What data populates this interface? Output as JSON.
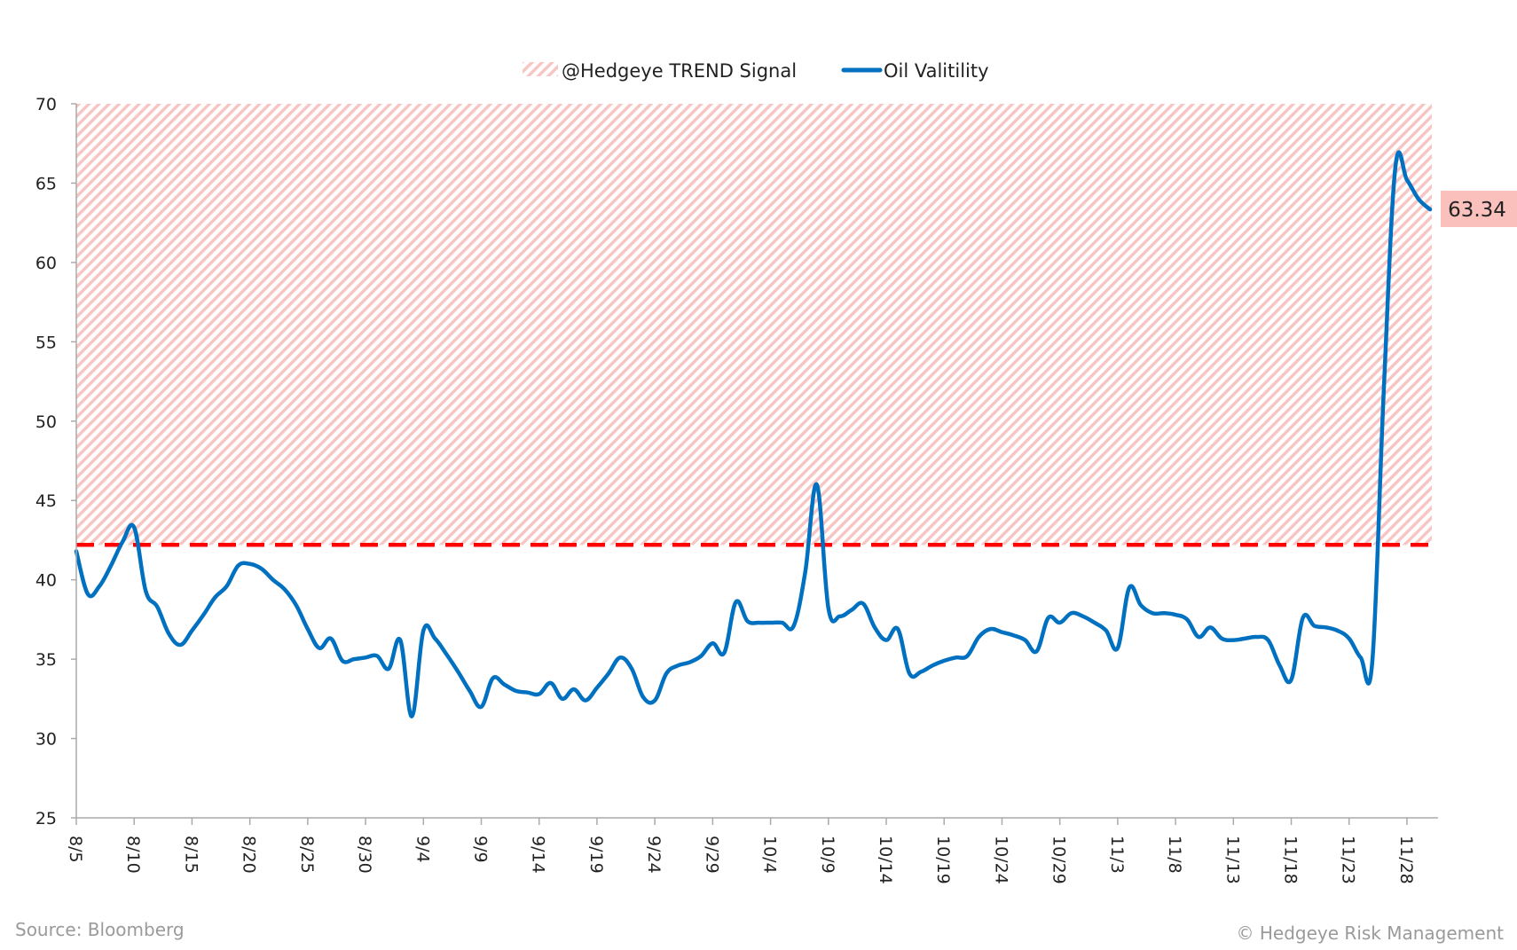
{
  "chart_data": {
    "type": "line",
    "title": "",
    "xlabel": "",
    "ylabel": "",
    "ylim": [
      25,
      70
    ],
    "yticks": [
      25,
      30,
      35,
      40,
      45,
      50,
      55,
      60,
      65,
      70
    ],
    "xticks": [
      "8/5",
      "8/10",
      "8/15",
      "8/20",
      "8/25",
      "8/30",
      "9/4",
      "9/9",
      "9/14",
      "9/19",
      "9/24",
      "9/29",
      "10/4",
      "10/9",
      "10/14",
      "10/19",
      "10/24",
      "10/29",
      "11/3",
      "11/8",
      "11/13",
      "11/18",
      "11/23",
      "11/28"
    ],
    "grid": false,
    "legend_position": "top",
    "legend": [
      {
        "label": "@Hedgeye TREND Signal",
        "style": "hatched",
        "color": "#f7c6c4"
      },
      {
        "label": "Oil Valitility",
        "style": "line",
        "color": "#0070c0"
      }
    ],
    "trend_signal": {
      "value": 42.2,
      "range": [
        42.2,
        70
      ],
      "line_color": "#ff0000",
      "fill_color": "#f7c6c4"
    },
    "last_value_label": "63.34",
    "last_value_bg": "#f9c0bc",
    "series": [
      {
        "name": "Oil Valitility",
        "color": "#0070c0",
        "x": [
          "8/5",
          "8/6",
          "8/7",
          "8/8",
          "8/9",
          "8/10",
          "8/11",
          "8/12",
          "8/13",
          "8/14",
          "8/15",
          "8/16",
          "8/17",
          "8/18",
          "8/19",
          "8/20",
          "8/21",
          "8/22",
          "8/23",
          "8/24",
          "8/25",
          "8/26",
          "8/27",
          "8/28",
          "8/29",
          "8/30",
          "8/31",
          "9/1",
          "9/2",
          "9/3",
          "9/4",
          "9/5",
          "9/6",
          "9/7",
          "9/8",
          "9/9",
          "9/10",
          "9/11",
          "9/12",
          "9/13",
          "9/14",
          "9/15",
          "9/16",
          "9/17",
          "9/18",
          "9/19",
          "9/20",
          "9/21",
          "9/22",
          "9/23",
          "9/24",
          "9/25",
          "9/26",
          "9/27",
          "9/28",
          "9/29",
          "9/30",
          "10/1",
          "10/2",
          "10/3",
          "10/4",
          "10/5",
          "10/6",
          "10/7",
          "10/8",
          "10/9",
          "10/10",
          "10/11",
          "10/12",
          "10/13",
          "10/14",
          "10/15",
          "10/16",
          "10/17",
          "10/18",
          "10/19",
          "10/20",
          "10/21",
          "10/22",
          "10/23",
          "10/24",
          "10/25",
          "10/26",
          "10/27",
          "10/28",
          "10/29",
          "10/30",
          "10/31",
          "11/1",
          "11/2",
          "11/3",
          "11/4",
          "11/5",
          "11/6",
          "11/7",
          "11/8",
          "11/9",
          "11/10",
          "11/11",
          "11/12",
          "11/13",
          "11/14",
          "11/15",
          "11/16",
          "11/17",
          "11/18",
          "11/19",
          "11/20",
          "11/21",
          "11/22",
          "11/23",
          "11/24",
          "11/25",
          "11/26",
          "11/27",
          "11/28",
          "11/29",
          "11/30"
        ],
        "values": [
          41.8,
          39.1,
          39.6,
          40.9,
          42.4,
          43.3,
          39.3,
          38.3,
          36.6,
          35.9,
          36.8,
          37.8,
          38.9,
          39.6,
          40.9,
          41.0,
          40.7,
          40.0,
          39.4,
          38.4,
          36.9,
          35.7,
          36.3,
          34.9,
          35.0,
          35.1,
          35.2,
          34.4,
          36.2,
          31.4,
          36.8,
          36.3,
          35.3,
          34.2,
          33.0,
          32.0,
          33.8,
          33.4,
          33.0,
          32.9,
          32.8,
          33.5,
          32.5,
          33.1,
          32.4,
          33.2,
          34.1,
          35.1,
          34.4,
          32.6,
          32.4,
          34.1,
          34.6,
          34.8,
          35.2,
          36.0,
          35.4,
          38.6,
          37.4,
          37.3,
          37.3,
          37.3,
          37.1,
          40.5,
          46.0,
          38.2,
          37.7,
          38.1,
          38.5,
          37.0,
          36.2,
          36.9,
          34.1,
          34.2,
          34.6,
          34.9,
          35.1,
          35.2,
          36.4,
          36.9,
          36.7,
          36.5,
          36.2,
          35.5,
          37.6,
          37.3,
          37.9,
          37.7,
          37.3,
          36.8,
          35.7,
          39.5,
          38.4,
          37.9,
          37.9,
          37.8,
          37.5,
          36.4,
          37.0,
          36.3,
          36.2,
          36.3,
          36.4,
          36.2,
          34.6,
          33.7,
          37.6,
          37.1,
          37.0,
          36.8,
          36.3,
          35.1,
          34.8,
          52.0,
          66.0,
          65.2,
          64.0,
          63.34
        ]
      }
    ]
  },
  "footer": {
    "source": "Source: Bloomberg",
    "copyright": "© Hedgeye Risk Management"
  }
}
